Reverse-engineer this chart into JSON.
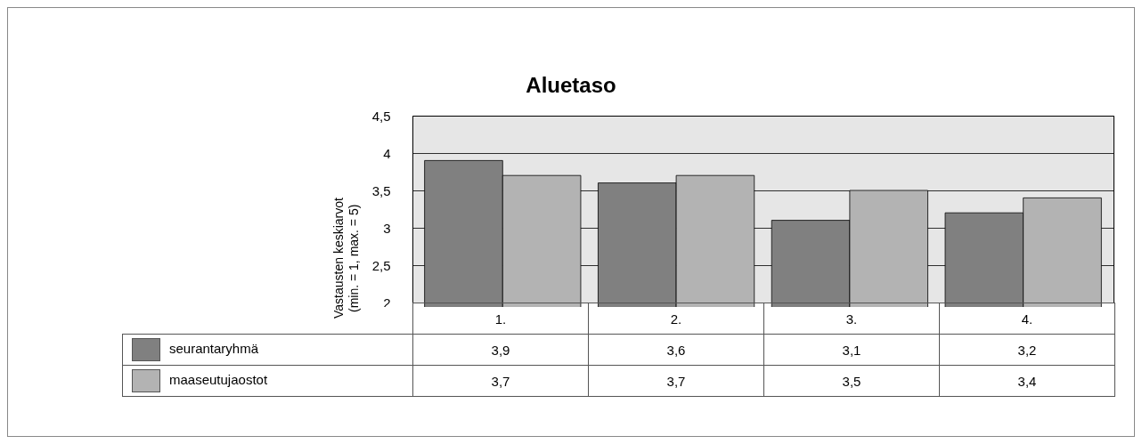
{
  "chart_data": {
    "type": "bar",
    "title": "Aluetaso",
    "ylabel": "Vastausten keskiarvot\n(min. = 1, max. = 5)",
    "categories": [
      "1.",
      "2.",
      "3.",
      "4."
    ],
    "series": [
      {
        "name": "seurantaryhmä",
        "color": "#808080",
        "values": [
          3.9,
          3.6,
          3.1,
          3.2
        ],
        "value_labels": [
          "3,9",
          "3,6",
          "3,1",
          "3,2"
        ]
      },
      {
        "name": "maaseutujaostot",
        "color": "#b3b3b3",
        "values": [
          3.7,
          3.7,
          3.5,
          3.4
        ],
        "value_labels": [
          "3,7",
          "3,7",
          "3,5",
          "3,4"
        ]
      }
    ],
    "ylim": [
      2,
      4.5
    ],
    "yticks": [
      2,
      {
        "value": 2.5,
        "label": "2,5"
      },
      3,
      {
        "value": 3.5,
        "label": "3,5"
      },
      4,
      {
        "value": 4.5,
        "label": "4,5"
      }
    ],
    "grid": "y",
    "legend": "bottom"
  }
}
